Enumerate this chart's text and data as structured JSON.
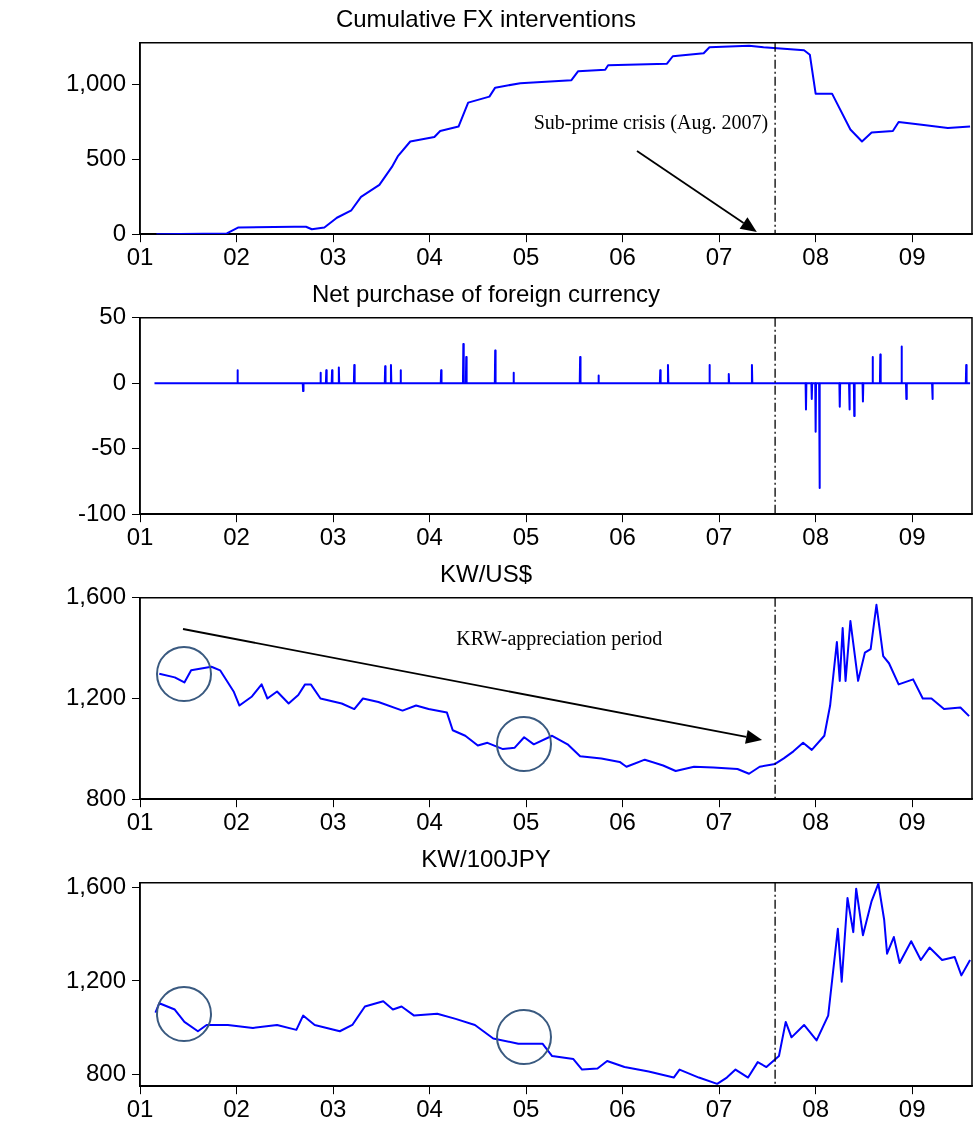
{
  "chart_data": [
    {
      "type": "line",
      "title": "Cumulative FX interventions",
      "xlim": [
        2001,
        2009.62
      ],
      "ylim": [
        0,
        1280
      ],
      "xticks": [
        {
          "value": 2001,
          "label": "01"
        },
        {
          "value": 2002,
          "label": "02"
        },
        {
          "value": 2003,
          "label": "03"
        },
        {
          "value": 2004,
          "label": "04"
        },
        {
          "value": 2005,
          "label": "05"
        },
        {
          "value": 2006,
          "label": "06"
        },
        {
          "value": 2007,
          "label": "07"
        },
        {
          "value": 2008,
          "label": "08"
        },
        {
          "value": 2009,
          "label": "09"
        }
      ],
      "yticks": [
        0,
        500,
        {
          "value": 1000,
          "label": "1,000"
        }
      ],
      "series": [
        {
          "color": "#0000ff",
          "x": [
            2001.17,
            2001.9,
            2002.02,
            2002.6,
            2002.72,
            2002.78,
            2002.91,
            2003.04,
            2003.19,
            2003.29,
            2003.48,
            2003.61,
            2003.67,
            2003.8,
            2004.05,
            2004.11,
            2004.3,
            2004.4,
            2004.62,
            2004.68,
            2004.94,
            2005.47,
            2005.54,
            2005.82,
            2005.85,
            2006.46,
            2006.52,
            2006.84,
            2006.9,
            2007.31,
            2007.46,
            2007.88,
            2007.94,
            2008.0,
            2008.17,
            2008.36,
            2008.48,
            2008.58,
            2008.8,
            2008.86,
            2009.12,
            2009.37,
            2009.6
          ],
          "values": [
            0,
            5,
            45,
            50,
            50,
            33,
            45,
            110,
            160,
            250,
            330,
            450,
            520,
            620,
            650,
            690,
            720,
            880,
            920,
            980,
            1010,
            1030,
            1090,
            1100,
            1130,
            1140,
            1190,
            1210,
            1250,
            1260,
            1250,
            1230,
            1200,
            940,
            940,
            700,
            620,
            680,
            690,
            750,
            730,
            710,
            720
          ]
        }
      ],
      "ref_lines": [
        {
          "axis": "x",
          "value": 2007.58
        }
      ],
      "annotations": [
        "Sub-prime crisis (Aug. 2007)"
      ]
    },
    {
      "type": "line",
      "title": "Net purchase of foreign currency",
      "xlim": [
        2001,
        2009.62
      ],
      "ylim": [
        -100,
        50
      ],
      "xticks": [
        {
          "value": 2001,
          "label": "01"
        },
        {
          "value": 2002,
          "label": "02"
        },
        {
          "value": 2003,
          "label": "03"
        },
        {
          "value": 2004,
          "label": "04"
        },
        {
          "value": 2005,
          "label": "05"
        },
        {
          "value": 2006,
          "label": "06"
        },
        {
          "value": 2007,
          "label": "07"
        },
        {
          "value": 2008,
          "label": "08"
        },
        {
          "value": 2009,
          "label": "09"
        }
      ],
      "yticks": [
        -100,
        -50,
        0,
        50
      ],
      "series": [
        {
          "color": "#0000ff",
          "x": [
            2001.15,
            2002.006,
            2002.01,
            2002.014,
            2002.686,
            2002.69,
            2002.694,
            2002.866,
            2002.87,
            2002.874,
            2002.926,
            2002.93,
            2002.934,
            2002.986,
            2002.99,
            2002.994,
            2003.056,
            2003.06,
            2003.064,
            2003.216,
            2003.22,
            2003.224,
            2003.536,
            2003.54,
            2003.544,
            2003.596,
            2003.6,
            2003.604,
            2003.696,
            2003.7,
            2003.704,
            2004.116,
            2004.12,
            2004.124,
            2004.346,
            2004.35,
            2004.354,
            2004.376,
            2004.38,
            2004.384,
            2004.676,
            2004.68,
            2004.684,
            2004.866,
            2004.87,
            2004.874,
            2005.556,
            2005.56,
            2005.564,
            2005.746,
            2005.75,
            2005.754,
            2006.386,
            2006.39,
            2006.394,
            2006.466,
            2006.47,
            2006.474,
            2006.896,
            2006.9,
            2006.904,
            2007.096,
            2007.1,
            2007.104,
            2007.336,
            2007.34,
            2007.344,
            2007.896,
            2007.9,
            2007.904,
            2007.956,
            2007.96,
            2007.964,
            2007.996,
            2008.0,
            2008.004,
            2008.036,
            2008.04,
            2008.044,
            2008.246,
            2008.25,
            2008.254,
            2008.346,
            2008.35,
            2008.354,
            2008.396,
            2008.4,
            2008.404,
            2008.486,
            2008.49,
            2008.494,
            2008.586,
            2008.59,
            2008.594,
            2008.666,
            2008.67,
            2008.674,
            2008.886,
            2008.89,
            2008.894,
            2008.936,
            2008.94,
            2008.944,
            2009.206,
            2009.21,
            2009.214,
            2009.556,
            2009.56,
            2009.564,
            2009.6
          ],
          "values": [
            0,
            0,
            10,
            0,
            0,
            -6,
            0,
            0,
            8,
            0,
            0,
            10,
            0,
            0,
            10,
            0,
            0,
            12,
            0,
            0,
            14,
            0,
            0,
            13,
            0,
            0,
            14,
            0,
            0,
            10,
            0,
            0,
            10,
            0,
            0,
            30,
            0,
            0,
            20,
            0,
            0,
            25,
            0,
            0,
            8,
            0,
            0,
            20,
            0,
            0,
            6,
            0,
            0,
            10,
            0,
            0,
            14,
            0,
            0,
            14,
            0,
            0,
            7,
            0,
            0,
            14,
            0,
            0,
            -20,
            0,
            0,
            -12,
            0,
            0,
            -37,
            0,
            0,
            -80,
            0,
            0,
            -18,
            0,
            0,
            -20,
            0,
            0,
            -25,
            0,
            0,
            -14,
            0,
            0,
            20,
            0,
            0,
            22,
            0,
            0,
            28,
            0,
            0,
            -12,
            0,
            0,
            -12,
            0,
            0,
            14,
            0,
            0
          ]
        }
      ],
      "ref_lines": [
        {
          "axis": "x",
          "value": 2007.58
        }
      ]
    },
    {
      "type": "line",
      "title": "KW/US$",
      "xlim": [
        2001,
        2009.62
      ],
      "ylim": [
        800,
        1600
      ],
      "xticks": [
        {
          "value": 2001,
          "label": "01"
        },
        {
          "value": 2002,
          "label": "02"
        },
        {
          "value": 2003,
          "label": "03"
        },
        {
          "value": 2004,
          "label": "04"
        },
        {
          "value": 2005,
          "label": "05"
        },
        {
          "value": 2006,
          "label": "06"
        },
        {
          "value": 2007,
          "label": "07"
        },
        {
          "value": 2008,
          "label": "08"
        },
        {
          "value": 2009,
          "label": "09"
        }
      ],
      "yticks": [
        800,
        {
          "value": 1200,
          "label": "1,200"
        },
        {
          "value": 1600,
          "label": "1,600"
        }
      ],
      "series": [
        {
          "color": "#0000ff",
          "x": [
            2001.2,
            2001.36,
            2001.46,
            2001.53,
            2001.74,
            2001.83,
            2001.97,
            2002.03,
            2002.16,
            2002.26,
            2002.32,
            2002.42,
            2002.54,
            2002.64,
            2002.71,
            2002.77,
            2002.87,
            2003.09,
            2003.22,
            2003.31,
            2003.47,
            2003.72,
            2003.86,
            2003.99,
            2004.18,
            2004.24,
            2004.37,
            2004.5,
            2004.6,
            2004.76,
            2004.88,
            2004.98,
            2005.08,
            2005.27,
            2005.43,
            2005.56,
            2005.78,
            2005.97,
            2006.04,
            2006.23,
            2006.42,
            2006.55,
            2006.74,
            2006.94,
            2007.19,
            2007.31,
            2007.42,
            2007.58,
            2007.67,
            2007.77,
            2007.87,
            2007.96,
            2008.09,
            2008.15,
            2008.22,
            2008.25,
            2008.28,
            2008.31,
            2008.36,
            2008.44,
            2008.51,
            2008.57,
            2008.63,
            2008.7,
            2008.76,
            2008.86,
            2009.01,
            2009.11,
            2009.2,
            2009.33,
            2009.5,
            2009.59
          ],
          "values": [
            1298,
            1284,
            1264,
            1312,
            1326,
            1312,
            1228,
            1172,
            1208,
            1256,
            1200,
            1228,
            1180,
            1214,
            1256,
            1256,
            1200,
            1180,
            1158,
            1200,
            1186,
            1152,
            1172,
            1158,
            1144,
            1074,
            1052,
            1013,
            1024,
            999,
            1004,
            1046,
            1018,
            1052,
            1018,
            971,
            962,
            948,
            929,
            957,
            934,
            912,
            929,
            926,
            920,
            901,
            929,
            940,
            962,
            990,
            1024,
            996,
            1052,
            1172,
            1424,
            1270,
            1480,
            1270,
            1508,
            1270,
            1382,
            1396,
            1572,
            1368,
            1340,
            1256,
            1276,
            1200,
            1200,
            1158,
            1164,
            1130
          ]
        }
      ],
      "ref_lines": [
        {
          "axis": "x",
          "value": 2007.58
        }
      ],
      "annotations": [
        "KRW-appreciation period"
      ]
    },
    {
      "type": "line",
      "title": "KW/100JPY",
      "xlim": [
        2001,
        2009.62
      ],
      "ylim": [
        750,
        1620
      ],
      "xticks": [
        {
          "value": 2001,
          "label": "01"
        },
        {
          "value": 2002,
          "label": "02"
        },
        {
          "value": 2003,
          "label": "03"
        },
        {
          "value": 2004,
          "label": "04"
        },
        {
          "value": 2005,
          "label": "05"
        },
        {
          "value": 2006,
          "label": "06"
        },
        {
          "value": 2007,
          "label": "07"
        },
        {
          "value": 2008,
          "label": "08"
        },
        {
          "value": 2009,
          "label": "09"
        }
      ],
      "yticks": [
        800,
        {
          "value": 1200,
          "label": "1,200"
        },
        {
          "value": 1600,
          "label": "1,600"
        }
      ],
      "series": [
        {
          "color": "#0000ff",
          "x": [
            2001.16,
            2001.2,
            2001.36,
            2001.46,
            2001.6,
            2001.69,
            2001.91,
            2002.17,
            2002.42,
            2002.62,
            2002.69,
            2002.81,
            2003.07,
            2003.2,
            2003.33,
            2003.52,
            2003.62,
            2003.71,
            2003.84,
            2004.08,
            2004.27,
            2004.47,
            2004.66,
            2004.92,
            2005.17,
            2005.27,
            2005.49,
            2005.58,
            2005.74,
            2005.84,
            2006.02,
            2006.27,
            2006.53,
            2006.59,
            2006.79,
            2006.98,
            2007.08,
            2007.17,
            2007.3,
            2007.4,
            2007.49,
            2007.62,
            2007.69,
            2007.75,
            2007.88,
            2008.01,
            2008.13,
            2008.23,
            2008.27,
            2008.33,
            2008.39,
            2008.42,
            2008.49,
            2008.58,
            2008.65,
            2008.71,
            2008.74,
            2008.81,
            2008.87,
            2008.99,
            2009.09,
            2009.18,
            2009.31,
            2009.44,
            2009.51,
            2009.6
          ],
          "values": [
            1065,
            1105,
            1078,
            1025,
            985,
            1012,
            1012,
            999,
            1012,
            991,
            1052,
            1012,
            985,
            1012,
            1091,
            1113,
            1078,
            1091,
            1052,
            1060,
            1038,
            1012,
            954,
            932,
            932,
            879,
            866,
            821,
            826,
            858,
            832,
            813,
            787,
            821,
            787,
            760,
            787,
            821,
            787,
            853,
            832,
            879,
            1025,
            959,
            1012,
            946,
            1052,
            1423,
            1197,
            1555,
            1409,
            1595,
            1396,
            1542,
            1616,
            1462,
            1317,
            1388,
            1277,
            1370,
            1290,
            1343,
            1290,
            1303,
            1224,
            1290
          ]
        }
      ],
      "ref_lines": [
        {
          "axis": "x",
          "value": 2007.58
        }
      ]
    }
  ]
}
